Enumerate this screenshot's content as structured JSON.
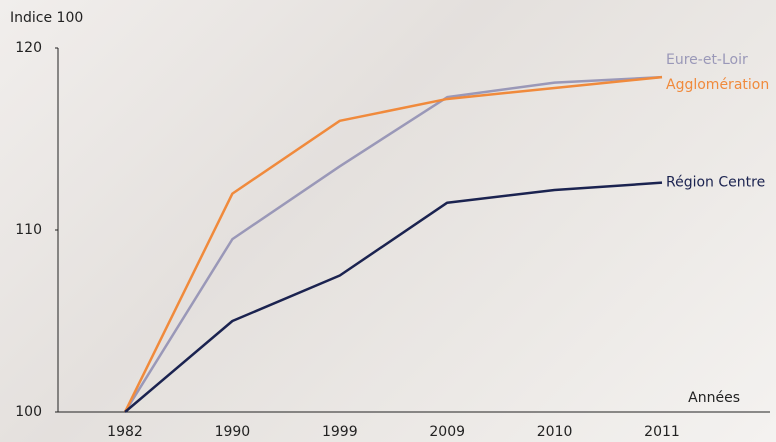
{
  "chart_data": {
    "type": "line",
    "y_label": "Indice 100",
    "x_label": "Années",
    "categories": [
      "1982",
      "1990",
      "1999",
      "2009",
      "2010",
      "2011"
    ],
    "series": [
      {
        "name": "Eure-et-Loir",
        "color": "#9a98b8",
        "values": [
          100,
          109.5,
          113.5,
          117.3,
          118.1,
          118.4
        ]
      },
      {
        "name": "Agglomération",
        "color": "#f08a3c",
        "values": [
          100,
          112,
          116,
          117.2,
          117.8,
          118.4
        ]
      },
      {
        "name": "Région Centre",
        "color": "#1b2350",
        "values": [
          100,
          105,
          107.5,
          111.5,
          112.2,
          112.6
        ]
      }
    ],
    "ylim": [
      100,
      120
    ],
    "yticks": [
      100,
      110,
      120
    ]
  }
}
